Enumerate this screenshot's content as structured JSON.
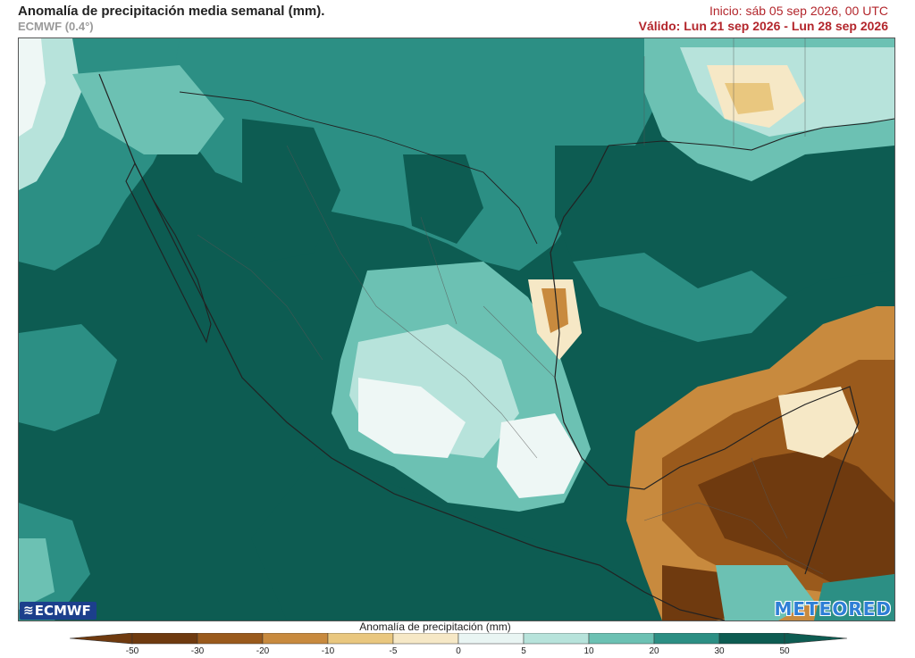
{
  "header": {
    "title": "Anomalía de precipitación media semanal (mm).",
    "model": "ECMWF (0.4°)",
    "init": "Inicio:  sáb 05 sep 2026, 00 UTC",
    "valid": "Válido: Lun 21 sep 2026 - Lun 28 sep 2026"
  },
  "logos": {
    "left": "ECMWF",
    "right": "METEORED"
  },
  "colorbar": {
    "title": "Anomalía de precipitación (mm)",
    "ticks": [
      "-50",
      "-30",
      "-20",
      "-10",
      "-5",
      "0",
      "5",
      "10",
      "20",
      "30",
      "50"
    ],
    "colors": [
      "#6f3a0f",
      "#9a5a1c",
      "#c88a3e",
      "#e9c77f",
      "#f6e8c6",
      "#f2f2f2",
      "#e9f5f3",
      "#b7e3db",
      "#6cc1b3",
      "#2c8f84",
      "#0d5c52"
    ]
  },
  "palette": {
    "ocean_dark": "#0d5c52",
    "teal_mid": "#2c8f84",
    "teal_light": "#6cc1b3",
    "mint": "#b7e3db",
    "near_white": "#eef7f5",
    "brown_dark": "#6f3a0f",
    "brown_mid": "#9a5a1c",
    "tan": "#c88a3e",
    "sand": "#e9c77f",
    "border": "#222222"
  }
}
